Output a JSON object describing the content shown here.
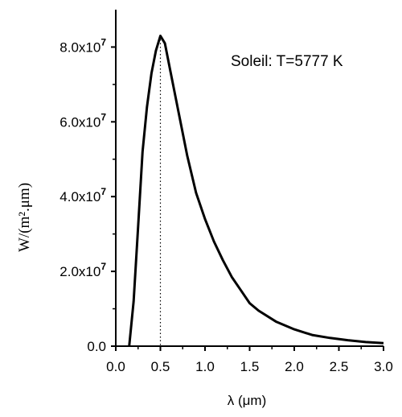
{
  "chart_data": {
    "type": "line",
    "title": "",
    "annotation": "Soleil:  T=5777 K",
    "xlabel": "λ (μm)",
    "ylabel": "W/(m².μm)",
    "xlim": [
      0,
      3.0
    ],
    "ylim": [
      0,
      90000000
    ],
    "x_ticks": [
      {
        "value": 0.0,
        "label": "0.0"
      },
      {
        "value": 0.5,
        "label": "0.5"
      },
      {
        "value": 1.0,
        "label": "1.0"
      },
      {
        "value": 1.5,
        "label": "1.5"
      },
      {
        "value": 2.0,
        "label": "2.0"
      },
      {
        "value": 2.5,
        "label": "2.5"
      },
      {
        "value": 3.0,
        "label": "3.0"
      }
    ],
    "y_ticks": [
      {
        "value": 0,
        "label": "0.0",
        "exp": ""
      },
      {
        "value": 20000000,
        "label": "2.0x10",
        "exp": "7"
      },
      {
        "value": 40000000,
        "label": "4.0x10",
        "exp": "7"
      },
      {
        "value": 60000000,
        "label": "6.0x10",
        "exp": "7"
      },
      {
        "value": 80000000,
        "label": "8.0x10",
        "exp": "7"
      }
    ],
    "peak_marker_x": 0.5,
    "series": [
      {
        "x": [
          0.15,
          0.2,
          0.25,
          0.3,
          0.35,
          0.4,
          0.45,
          0.5,
          0.55,
          0.6,
          0.7,
          0.8,
          0.9,
          1.0,
          1.1,
          1.2,
          1.3,
          1.4,
          1.5,
          1.6,
          1.8,
          2.0,
          2.2,
          2.4,
          2.6,
          2.8,
          3.0
        ],
        "y": [
          0,
          12000000,
          32000000,
          52000000,
          64000000,
          73000000,
          79000000,
          83000000,
          81000000,
          75000000,
          63000000,
          51000000,
          41000000,
          34000000,
          28000000,
          23000000,
          18500000,
          15000000,
          11500000,
          9500000,
          6500000,
          4500000,
          3000000,
          2200000,
          1600000,
          1100000,
          800000
        ]
      }
    ]
  }
}
